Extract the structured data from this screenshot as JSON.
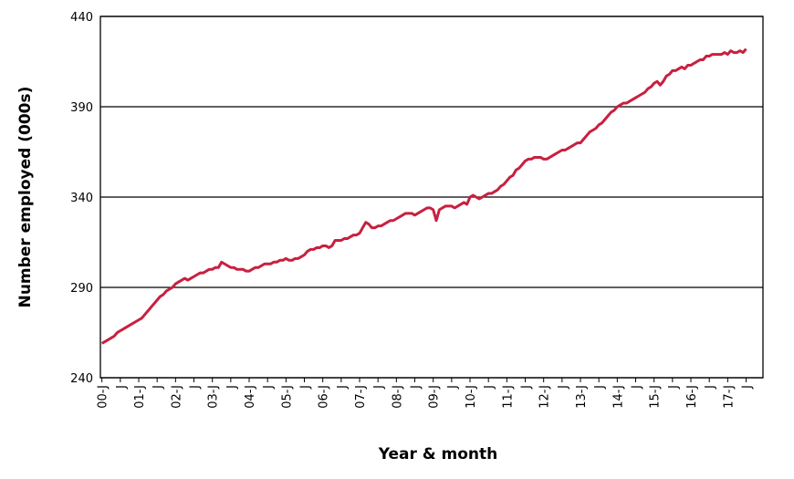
{
  "chart_data": {
    "type": "line",
    "y_label": "Number employed (000s)",
    "x_label": "Year & month",
    "ylim": [
      240,
      440
    ],
    "yticks": [
      240,
      290,
      340,
      390,
      440
    ],
    "grid": true,
    "categories": [
      "00-J",
      null,
      null,
      null,
      null,
      null,
      "J",
      null,
      null,
      null,
      null,
      null,
      "01-J",
      null,
      null,
      null,
      null,
      null,
      "J",
      null,
      null,
      null,
      null,
      null,
      "02-J",
      null,
      null,
      null,
      null,
      null,
      "J",
      null,
      null,
      null,
      null,
      null,
      "03-J",
      null,
      null,
      null,
      null,
      null,
      "J",
      null,
      null,
      null,
      null,
      null,
      "04-J",
      null,
      null,
      null,
      null,
      null,
      "J",
      null,
      null,
      null,
      null,
      null,
      "05-J",
      null,
      null,
      null,
      null,
      null,
      "J",
      null,
      null,
      null,
      null,
      null,
      "06-J",
      null,
      null,
      null,
      null,
      null,
      "J",
      null,
      null,
      null,
      null,
      null,
      "07-J",
      null,
      null,
      null,
      null,
      null,
      "J",
      null,
      null,
      null,
      null,
      null,
      "08-J",
      null,
      null,
      null,
      null,
      null,
      "J",
      null,
      null,
      null,
      null,
      null,
      "09-J",
      null,
      null,
      null,
      null,
      null,
      "J",
      null,
      null,
      null,
      null,
      null,
      "10-J",
      null,
      null,
      null,
      null,
      null,
      "J",
      null,
      null,
      null,
      null,
      null,
      "11-J",
      null,
      null,
      null,
      null,
      null,
      "J",
      null,
      null,
      null,
      null,
      null,
      "12-J",
      null,
      null,
      null,
      null,
      null,
      "J",
      null,
      null,
      null,
      null,
      null,
      "13-J",
      null,
      null,
      null,
      null,
      null,
      "J",
      null,
      null,
      null,
      null,
      null,
      "14-J",
      null,
      null,
      null,
      null,
      null,
      "J",
      null,
      null,
      null,
      null,
      null,
      "15-J",
      null,
      null,
      null,
      null,
      null,
      "J",
      null,
      null,
      null,
      null,
      null,
      "16-J",
      null,
      null,
      null,
      null,
      null,
      "J",
      null,
      null,
      null,
      null,
      null,
      "17-J",
      null,
      null,
      null,
      null,
      null,
      "J",
      null,
      null,
      null,
      null,
      null
    ],
    "series": [
      {
        "color": "#c8203f",
        "values": [
          259,
          260,
          261,
          262,
          263,
          265,
          266,
          267,
          268,
          269,
          270,
          271,
          272,
          273,
          275,
          277,
          279,
          281,
          283,
          285,
          286,
          288,
          289,
          290,
          292,
          293,
          294,
          295,
          294,
          295,
          296,
          297,
          298,
          298,
          299,
          300,
          300,
          301,
          301,
          304,
          303,
          302,
          301,
          301,
          300,
          300,
          300,
          299,
          299,
          300,
          301,
          301,
          302,
          303,
          303,
          303,
          304,
          304,
          305,
          305,
          306,
          305,
          305,
          306,
          306,
          307,
          308,
          310,
          311,
          311,
          312,
          312,
          313,
          313,
          312,
          313,
          316,
          316,
          316,
          317,
          317,
          318,
          319,
          319,
          320,
          323,
          326,
          325,
          323,
          323,
          324,
          324,
          325,
          326,
          327,
          327,
          328,
          329,
          330,
          331,
          331,
          331,
          330,
          331,
          332,
          333,
          334,
          334,
          333,
          327,
          333,
          334,
          335,
          335,
          335,
          334,
          335,
          336,
          337,
          336,
          340,
          341,
          340,
          339,
          340,
          341,
          342,
          342,
          343,
          344,
          346,
          347,
          349,
          351,
          352,
          355,
          356,
          358,
          360,
          361,
          361,
          362,
          362,
          362,
          361,
          361,
          362,
          363,
          364,
          365,
          366,
          366,
          367,
          368,
          369,
          370,
          370,
          372,
          374,
          376,
          377,
          378,
          380,
          381,
          383,
          385,
          387,
          388,
          390,
          391,
          392,
          392,
          393,
          394,
          395,
          396,
          397,
          398,
          400,
          401,
          403,
          404,
          402,
          404,
          407,
          408,
          410,
          410,
          411,
          412,
          411,
          413,
          413,
          414,
          415,
          416,
          416,
          418,
          418,
          419,
          419,
          419,
          419,
          420,
          419,
          421,
          420,
          420,
          421,
          420,
          422,
          null,
          null,
          null,
          null,
          null
        ]
      }
    ]
  }
}
